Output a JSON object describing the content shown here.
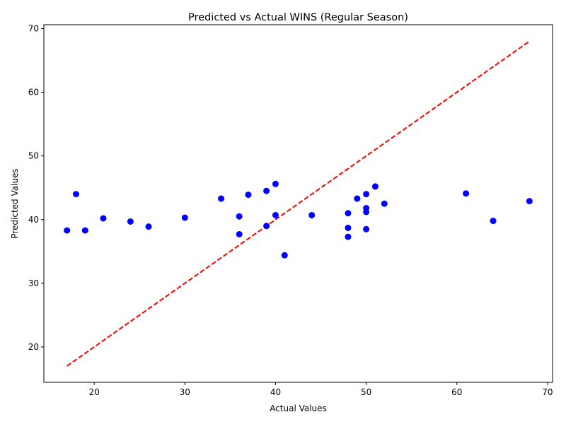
{
  "chart_data": {
    "type": "scatter",
    "title": "Predicted vs Actual WINS (Regular Season)",
    "xlabel": "Actual Values",
    "ylabel": "Predicted Values",
    "xlim": [
      14.45,
      70.55
    ],
    "ylim": [
      14.45,
      70.6
    ],
    "xticks": [
      20,
      30,
      40,
      50,
      60,
      70
    ],
    "yticks": [
      20,
      30,
      40,
      50,
      60,
      70
    ],
    "grid": false,
    "point_color": "#0000ff",
    "reference_line": {
      "x": [
        17,
        68
      ],
      "y": [
        17,
        68
      ],
      "color": "#ff0000",
      "style": "dashed"
    },
    "x": [
      17,
      18,
      19,
      21,
      24,
      26,
      30,
      34,
      36,
      36,
      37,
      39,
      39,
      40,
      40,
      41,
      44,
      48,
      48,
      48,
      49,
      50,
      50,
      50,
      50,
      51,
      52,
      61,
      64,
      68
    ],
    "y": [
      38.3,
      44.0,
      38.3,
      40.2,
      39.7,
      38.9,
      40.3,
      43.3,
      40.5,
      37.7,
      43.9,
      44.5,
      39.0,
      45.6,
      40.7,
      34.4,
      40.7,
      41.0,
      38.7,
      37.3,
      43.3,
      44.0,
      41.8,
      41.2,
      38.5,
      45.2,
      42.5,
      44.1,
      39.8,
      42.9
    ]
  }
}
